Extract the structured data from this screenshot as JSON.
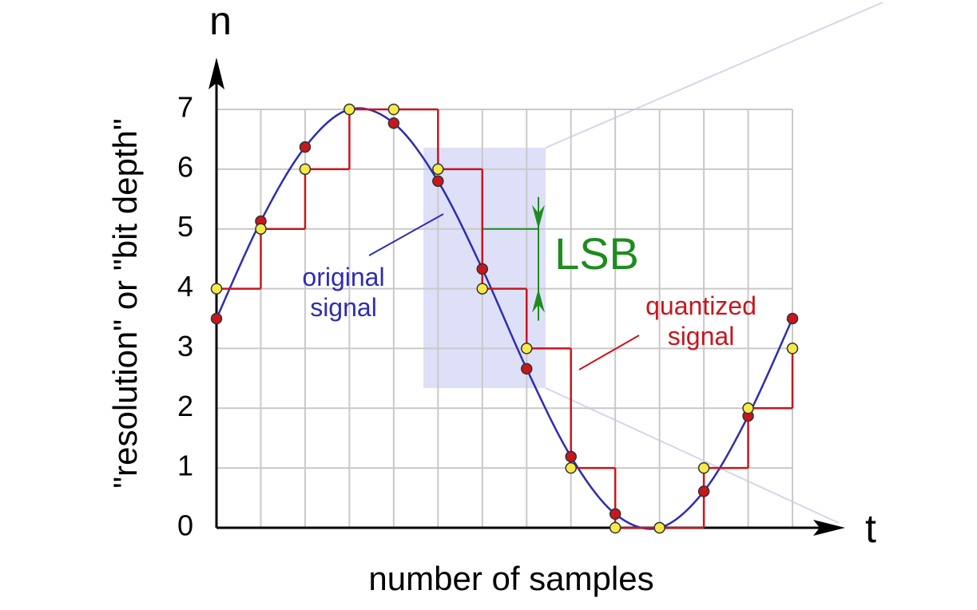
{
  "chart_data": {
    "type": "line",
    "y_axis_symbol": "n",
    "x_axis_symbol": "t",
    "y_label": "\"resolution\" or \"bit depth\"",
    "x_label": "number of samples",
    "annotation": "LSB",
    "annotation_color": "#1e8c1e",
    "x": [
      0,
      1,
      2,
      3,
      4,
      5,
      6,
      7,
      8,
      9,
      10,
      11,
      12,
      13
    ],
    "xlim": [
      0,
      13
    ],
    "ylim": [
      0,
      7
    ],
    "yticks": [
      0,
      1,
      2,
      3,
      4,
      5,
      6,
      7
    ],
    "grid": true,
    "series": [
      {
        "name": "original signal",
        "color": "#2d2db4",
        "marker_color": "#c8161d",
        "values": [
          3.5,
          5.13,
          6.37,
          7,
          6.77,
          5.8,
          4.33,
          2.66,
          1.19,
          0.23,
          0,
          0.61,
          1.87,
          3.5
        ]
      },
      {
        "name": "quantized signal",
        "color": "#c8161d",
        "marker_color": "#f5ea4a",
        "step": true,
        "values": [
          4,
          5,
          6,
          7,
          7,
          6,
          4,
          3,
          1,
          0,
          0,
          1,
          2,
          3
        ]
      }
    ]
  }
}
